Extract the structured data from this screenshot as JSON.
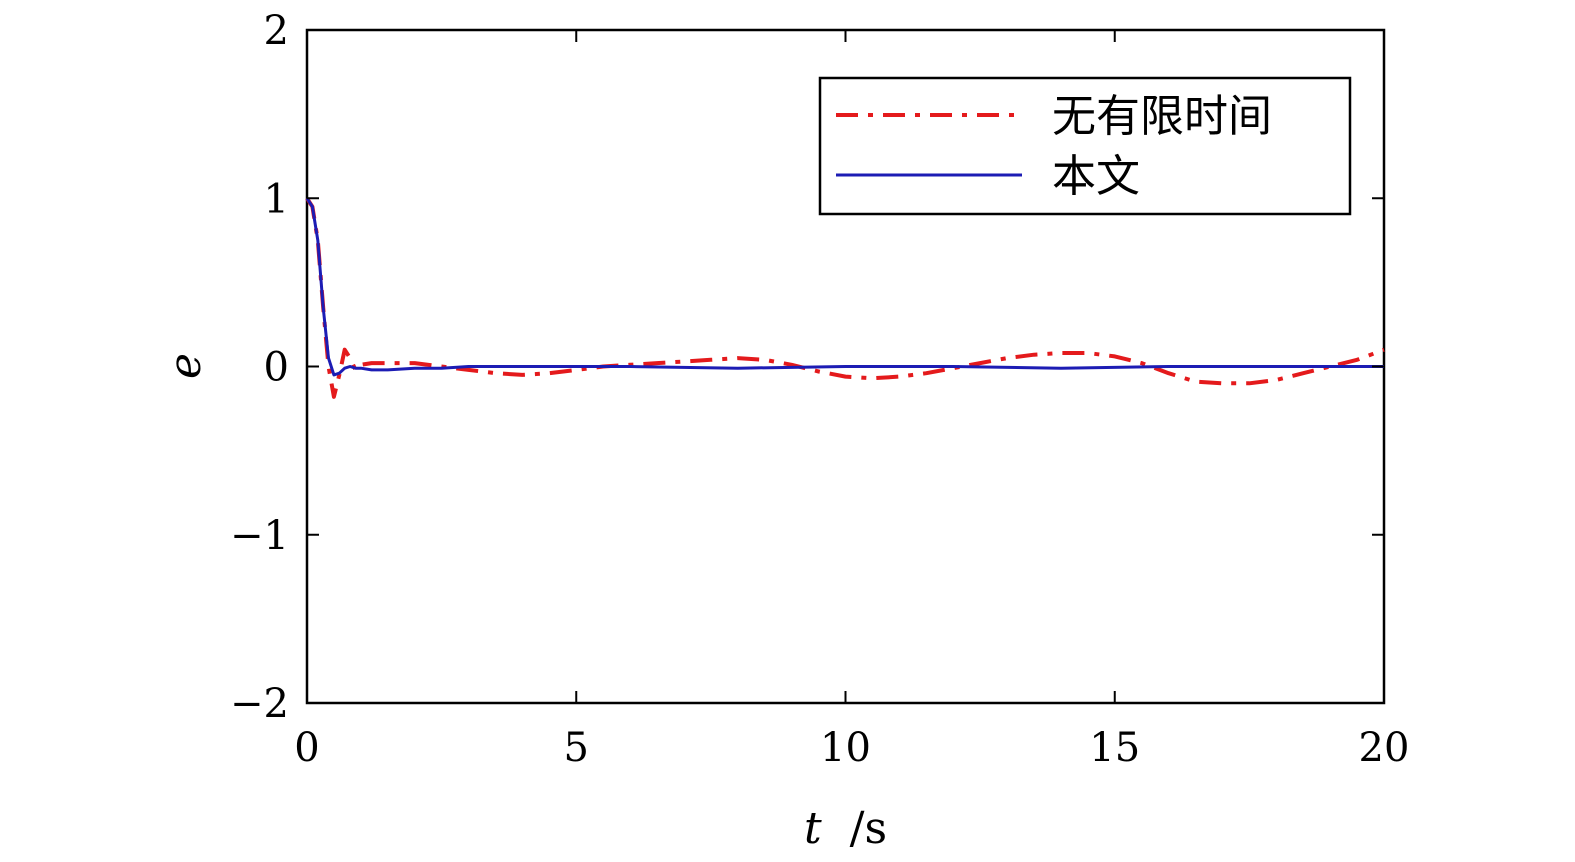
{
  "chart_data": {
    "type": "line",
    "xlabel_var": "t",
    "xlabel_unit": "/s",
    "ylabel": "e",
    "xlim": [
      0,
      20
    ],
    "ylim": [
      -2,
      2
    ],
    "x_ticks": [
      "0",
      "5",
      "10",
      "15",
      "20"
    ],
    "y_ticks": [
      "2",
      "1",
      "0",
      "−1",
      "−2"
    ],
    "grid": false,
    "legend_position": "top-right",
    "series": [
      {
        "name": "无有限时间",
        "color": "#e41a1c",
        "style": "dash-dot",
        "x": [
          0,
          0.1,
          0.2,
          0.3,
          0.4,
          0.5,
          0.6,
          0.7,
          0.8,
          0.9,
          1.0,
          1.2,
          1.5,
          2.0,
          2.5,
          3.0,
          3.5,
          4.0,
          4.5,
          5.0,
          5.5,
          6.0,
          6.5,
          7.0,
          7.5,
          8.0,
          8.5,
          9.0,
          9.5,
          10.0,
          10.5,
          11.0,
          11.5,
          12.0,
          12.5,
          13.0,
          13.5,
          14.0,
          14.5,
          15.0,
          15.5,
          16.0,
          16.5,
          17.0,
          17.5,
          18.0,
          18.5,
          19.0,
          19.5,
          20.0
        ],
        "y": [
          1.0,
          0.95,
          0.75,
          0.35,
          0.0,
          -0.18,
          -0.05,
          0.1,
          0.05,
          -0.02,
          0.01,
          0.02,
          0.02,
          0.02,
          0.0,
          -0.02,
          -0.04,
          -0.05,
          -0.04,
          -0.02,
          0.0,
          0.01,
          0.02,
          0.03,
          0.04,
          0.05,
          0.04,
          0.01,
          -0.03,
          -0.06,
          -0.07,
          -0.06,
          -0.04,
          -0.01,
          0.02,
          0.05,
          0.07,
          0.08,
          0.08,
          0.06,
          0.02,
          -0.04,
          -0.09,
          -0.1,
          -0.1,
          -0.08,
          -0.04,
          0.0,
          0.04,
          0.1
        ]
      },
      {
        "name": "本文",
        "color": "#1c1cb4",
        "style": "solid",
        "x": [
          0,
          0.1,
          0.2,
          0.3,
          0.4,
          0.5,
          0.6,
          0.7,
          0.8,
          0.9,
          1.0,
          1.2,
          1.5,
          2.0,
          2.5,
          3.0,
          4.0,
          5.0,
          6.0,
          8.0,
          10.0,
          12.0,
          14.0,
          16.0,
          18.0,
          20.0
        ],
        "y": [
          1.0,
          0.95,
          0.75,
          0.35,
          0.05,
          -0.05,
          -0.04,
          -0.01,
          0.0,
          -0.01,
          -0.01,
          -0.02,
          -0.02,
          -0.01,
          -0.01,
          0.0,
          0.0,
          0.0,
          0.0,
          -0.01,
          0.0,
          0.0,
          -0.01,
          0.0,
          0.0,
          0.0
        ]
      }
    ]
  }
}
